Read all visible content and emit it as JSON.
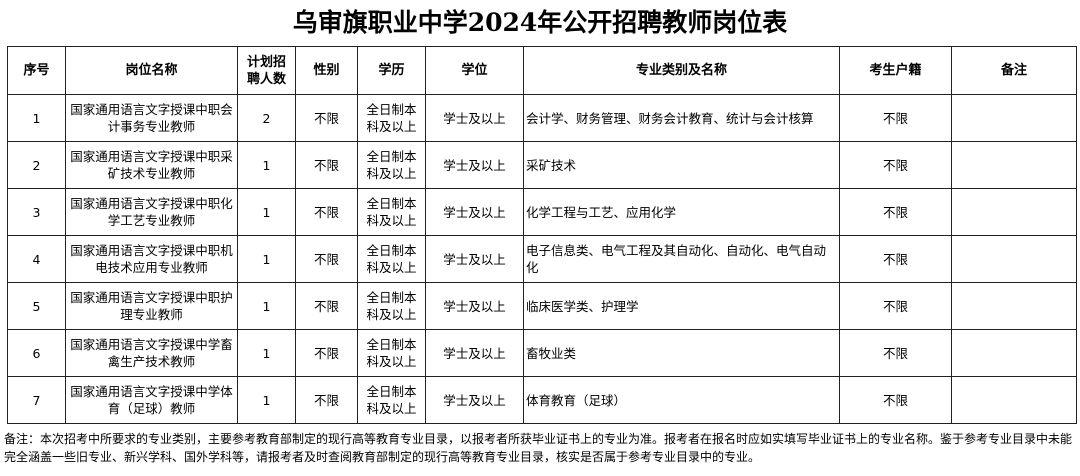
{
  "title": "乌审旗职业中学2024年公开招聘教师岗位表",
  "headers": [
    "序号",
    "岗位名称",
    "计划招聘人数",
    "性别",
    "学历",
    "学位",
    "专业类别及名称",
    "考生户籍",
    "备注"
  ],
  "rows": [
    {
      "no": "1",
      "position": "国家通用语言文字授课中职会计事务专业教师",
      "count": "2",
      "gender": "不限",
      "education": "全日制本科及以上",
      "degree": "学士及以上",
      "major": "会计学、财务管理、财务会计教育、统计与会计核算",
      "hukou": "不限",
      "remark": ""
    },
    {
      "no": "2",
      "position": "国家通用语言文字授课中职采矿技术专业教师",
      "count": "1",
      "gender": "不限",
      "education": "全日制本科及以上",
      "degree": "学士及以上",
      "major": "采矿技术",
      "hukou": "不限",
      "remark": ""
    },
    {
      "no": "3",
      "position": "国家通用语言文字授课中职化学工艺专业教师",
      "count": "1",
      "gender": "不限",
      "education": "全日制本科及以上",
      "degree": "学士及以上",
      "major": "化学工程与工艺、应用化学",
      "hukou": "不限",
      "remark": ""
    },
    {
      "no": "4",
      "position": "国家通用语言文字授课中职机电技术应用专业教师",
      "count": "1",
      "gender": "不限",
      "education": "全日制本科及以上",
      "degree": "学士及以上",
      "major": "电子信息类、电气工程及其自动化、自动化、电气自动化",
      "hukou": "不限",
      "remark": ""
    },
    {
      "no": "5",
      "position": "国家通用语言文字授课中职护理专业教师",
      "count": "1",
      "gender": "不限",
      "education": "全日制本科及以上",
      "degree": "学士及以上",
      "major": "临床医学类、护理学",
      "hukou": "不限",
      "remark": ""
    },
    {
      "no": "6",
      "position": "国家通用语言文字授课中学畜禽生产技术教师",
      "count": "1",
      "gender": "不限",
      "education": "全日制本科及以上",
      "degree": "学士及以上",
      "major": "畜牧业类",
      "hukou": "不限",
      "remark": ""
    },
    {
      "no": "7",
      "position": "国家通用语言文字授课中学体育（足球）教师",
      "count": "1",
      "gender": "不限",
      "education": "全日制本科及以上",
      "degree": "学士及以上",
      "major": "体育教育（足球）",
      "hukou": "不限",
      "remark": ""
    }
  ],
  "note": "备注：本次招考中所要求的专业类别，主要参考教育部制定的现行高等教育专业目录，以报考者所获毕业证书上的专业为准。报考者在报名时应如实填写毕业证书上的专业名称。鉴于参考专业目录中未能完全涵盖一些旧专业、新兴学科、国外学科等，请报考者及时查阅教育部制定的现行高等教育专业目录，核实是否属于参考专业目录中的专业。"
}
